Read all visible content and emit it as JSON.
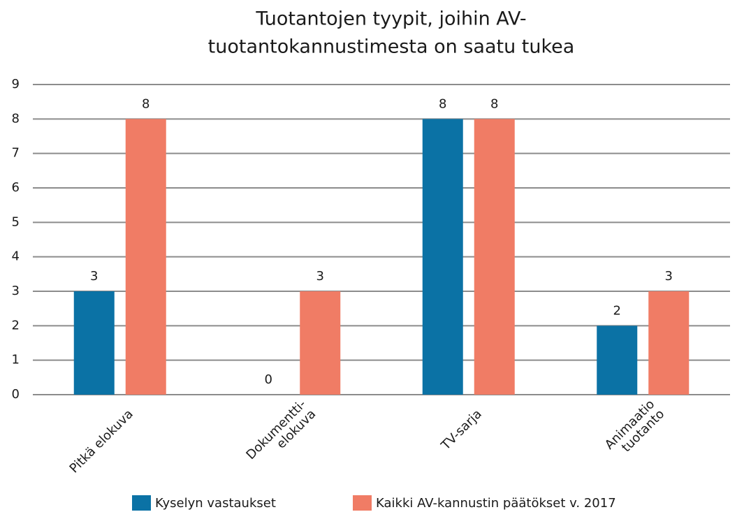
{
  "chart_data": {
    "type": "bar",
    "title": [
      "Tuotantojen tyypit, joihin AV-",
      "tuotantokannustimesta on saatu tukea"
    ],
    "categories": [
      [
        "Pitkä elokuva"
      ],
      [
        "Dokumentti-",
        "elokuva"
      ],
      [
        "TV-sarja"
      ],
      [
        "Animaatio",
        "tuotanto"
      ]
    ],
    "series": [
      {
        "name": "Kyselyn vastaukset",
        "color": "#0b72a5",
        "values": [
          3,
          0,
          8,
          2
        ]
      },
      {
        "name": "Kaikki AV-kannustin päätökset v. 2017",
        "color": "#f07c65",
        "values": [
          8,
          3,
          8,
          3
        ]
      }
    ],
    "ylim": [
      0,
      9
    ],
    "yticks": [
      0,
      1,
      2,
      3,
      4,
      5,
      6,
      7,
      8,
      9
    ],
    "grid": true,
    "legend": "bottom"
  }
}
